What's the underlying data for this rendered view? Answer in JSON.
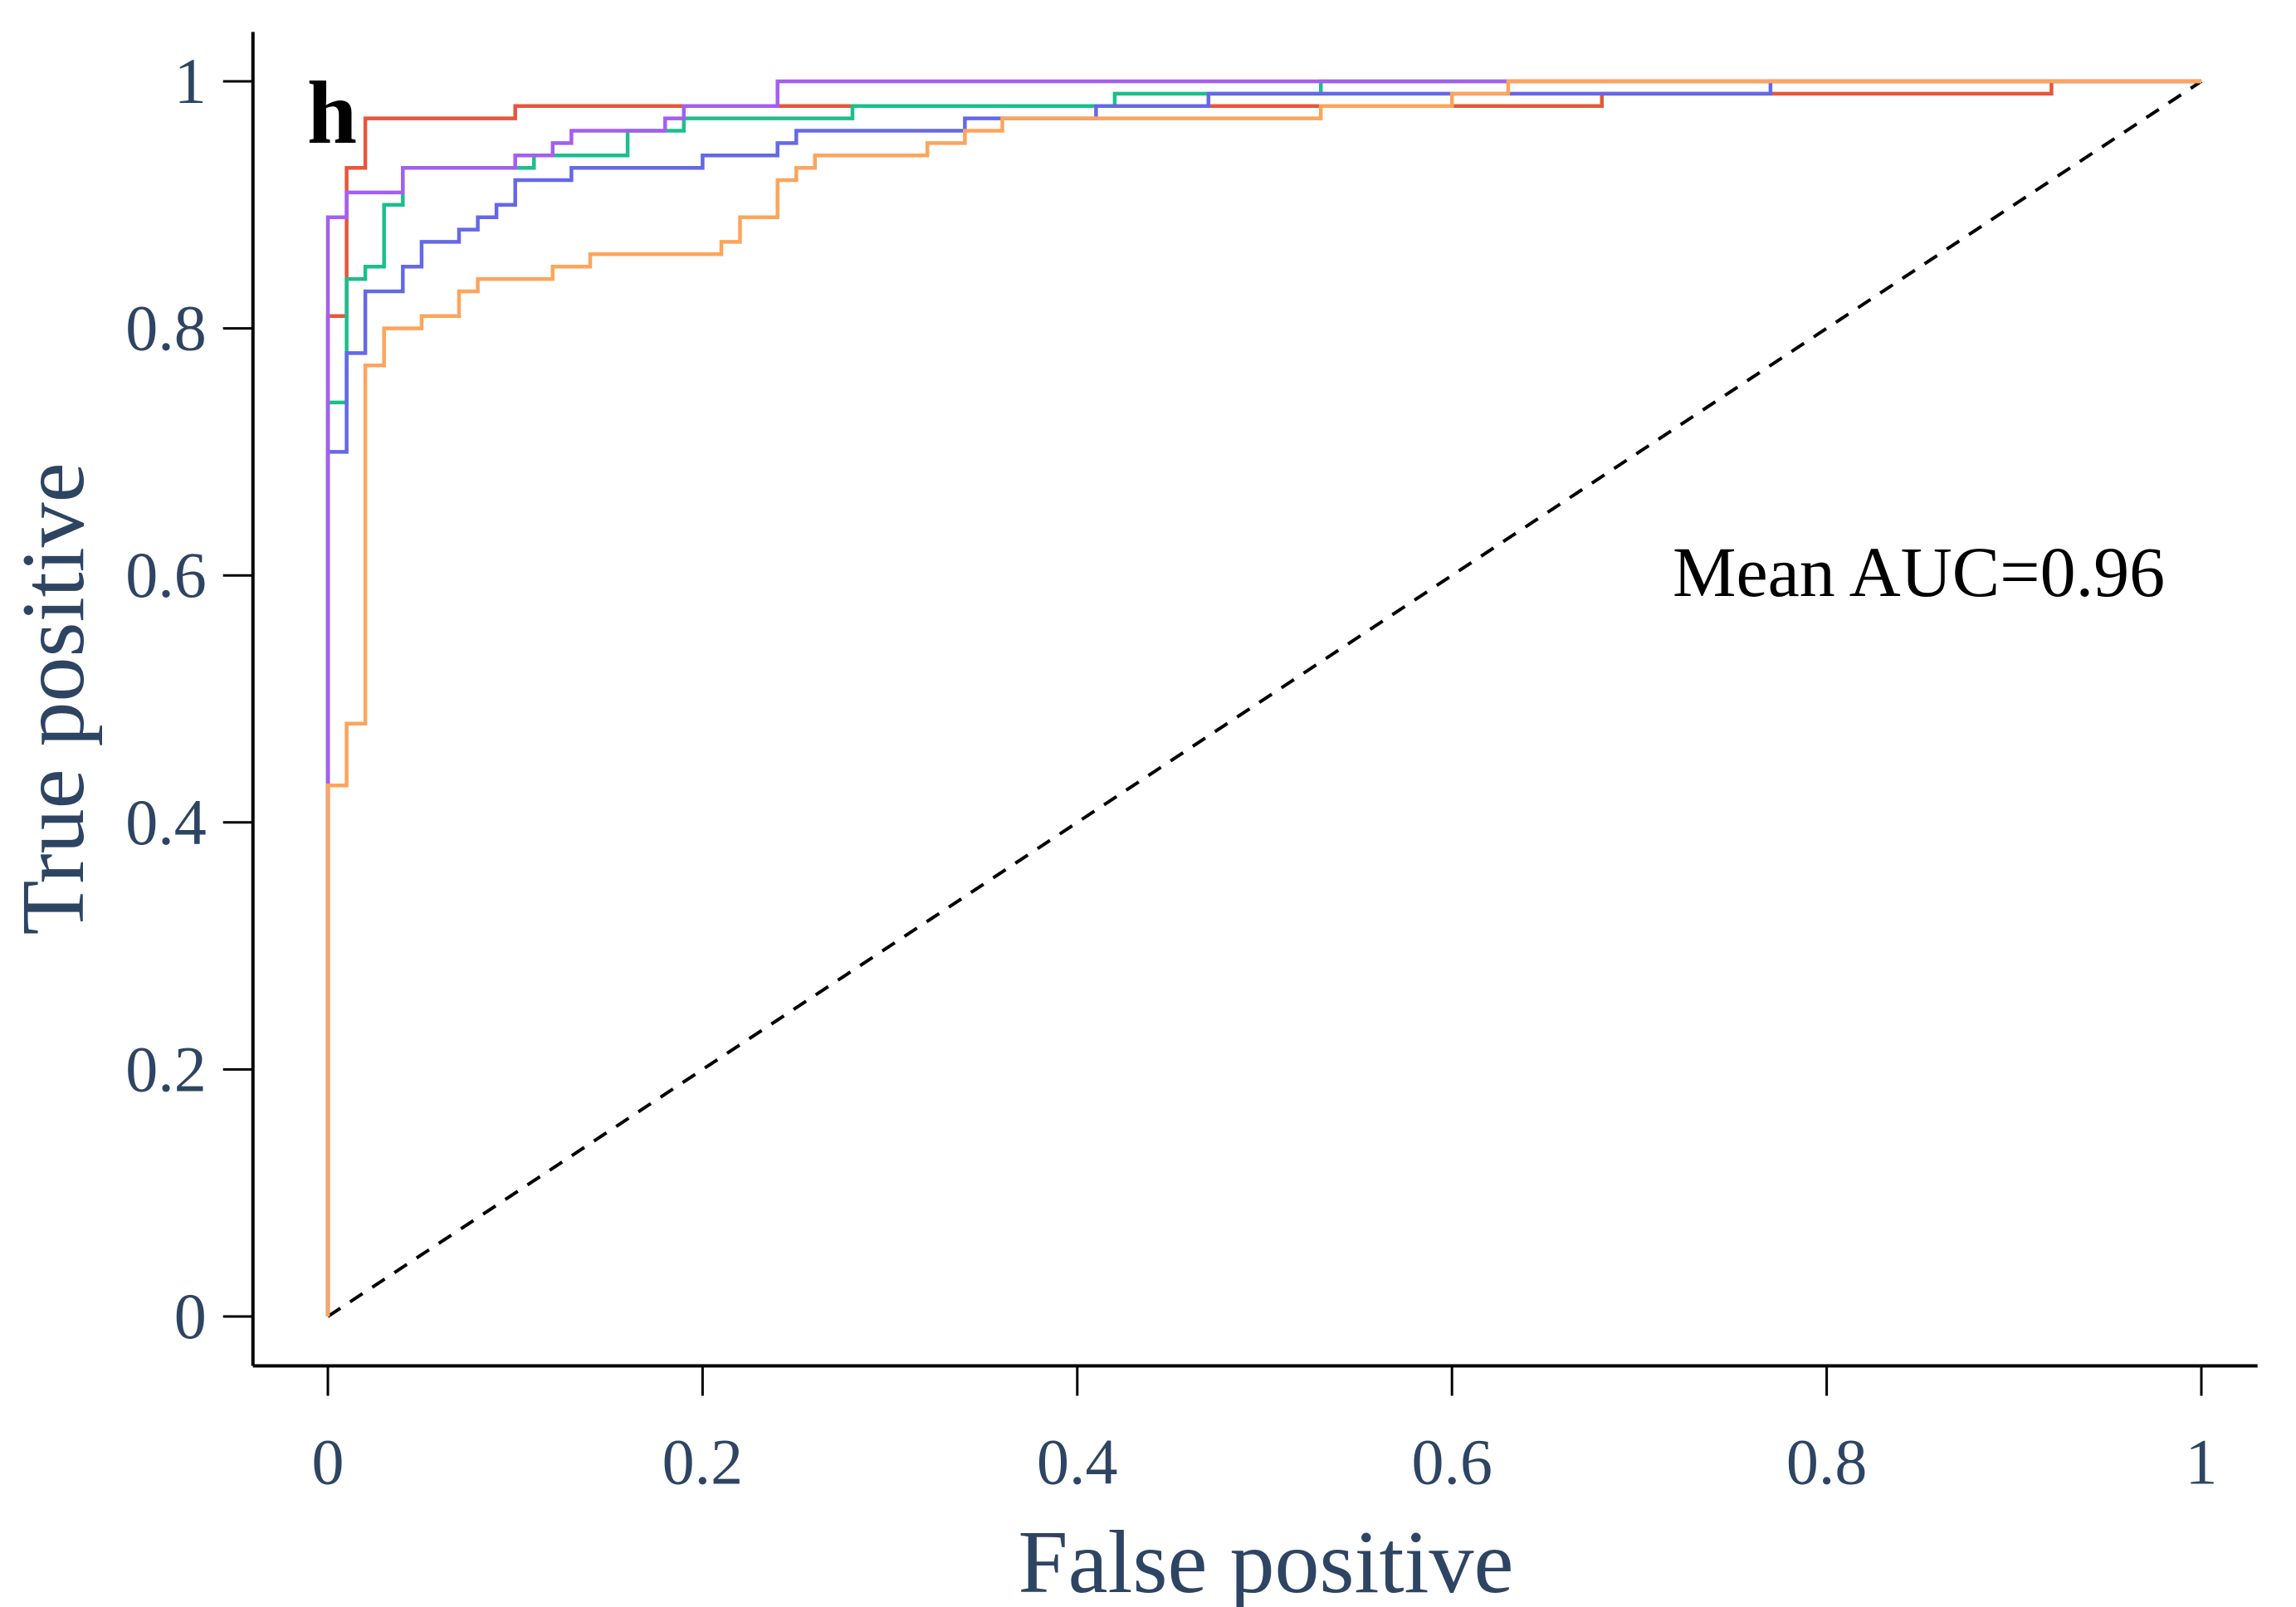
{
  "chart_data": {
    "type": "line",
    "panel_label": "h",
    "annotation": "Mean AUC=0.96",
    "xlabel": "False positive",
    "ylabel": "True positive",
    "xlim": [
      -0.04,
      1.03
    ],
    "ylim": [
      -0.04,
      1.04
    ],
    "x_ticks": [
      0,
      0.2,
      0.4,
      0.6,
      0.8,
      1
    ],
    "x_tick_labels": [
      "0",
      "0.2",
      "0.4",
      "0.6",
      "0.8",
      "1"
    ],
    "y_ticks": [
      0,
      0.2,
      0.4,
      0.6,
      0.8,
      1
    ],
    "y_tick_labels": [
      "0",
      "0.2",
      "0.4",
      "0.6",
      "0.8",
      "1"
    ],
    "grid": false,
    "legend": "none",
    "colors": {
      "axis": "#000000",
      "tick_text": "#2e4463",
      "diagonal": "#000000"
    },
    "diagonal": {
      "x": [
        0,
        1
      ],
      "y": [
        0,
        1
      ],
      "style": "dashed"
    },
    "series": [
      {
        "color": "#e8563a",
        "x": [
          0,
          0,
          0.01,
          0.01,
          0.02,
          0.02,
          0.1,
          0.1,
          0.68,
          0.68,
          0.92,
          0.92,
          1
        ],
        "y": [
          0,
          0.81,
          0.81,
          0.93,
          0.93,
          0.97,
          0.97,
          0.98,
          0.98,
          0.99,
          0.99,
          1.0,
          1.0
        ]
      },
      {
        "color": "#1bbf8c",
        "x": [
          0,
          0,
          0.01,
          0.01,
          0.02,
          0.02,
          0.03,
          0.03,
          0.04,
          0.04,
          0.11,
          0.11,
          0.16,
          0.16,
          0.19,
          0.19,
          0.28,
          0.28,
          0.42,
          0.42,
          0.53,
          0.53,
          1
        ],
        "y": [
          0,
          0.74,
          0.74,
          0.84,
          0.84,
          0.85,
          0.85,
          0.9,
          0.9,
          0.93,
          0.93,
          0.94,
          0.94,
          0.96,
          0.96,
          0.97,
          0.97,
          0.98,
          0.98,
          0.99,
          0.99,
          1.0,
          1.0
        ]
      },
      {
        "color": "#6468e8",
        "x": [
          0,
          0,
          0.01,
          0.01,
          0.02,
          0.02,
          0.04,
          0.04,
          0.05,
          0.05,
          0.07,
          0.07,
          0.08,
          0.08,
          0.09,
          0.09,
          0.1,
          0.1,
          0.13,
          0.13,
          0.2,
          0.2,
          0.24,
          0.24,
          0.25,
          0.25,
          0.34,
          0.34,
          0.41,
          0.41,
          0.47,
          0.47,
          0.77,
          0.77,
          1
        ],
        "y": [
          0,
          0.7,
          0.7,
          0.78,
          0.78,
          0.83,
          0.83,
          0.85,
          0.85,
          0.87,
          0.87,
          0.88,
          0.88,
          0.89,
          0.89,
          0.9,
          0.9,
          0.92,
          0.92,
          0.93,
          0.93,
          0.94,
          0.94,
          0.95,
          0.95,
          0.96,
          0.96,
          0.97,
          0.97,
          0.98,
          0.98,
          0.99,
          0.99,
          1.0,
          1.0
        ]
      },
      {
        "color": "#a45ff0",
        "x": [
          0,
          0,
          0.01,
          0.01,
          0.04,
          0.04,
          0.1,
          0.1,
          0.12,
          0.12,
          0.13,
          0.13,
          0.18,
          0.18,
          0.19,
          0.19,
          0.24,
          0.24,
          1
        ],
        "y": [
          0,
          0.89,
          0.89,
          0.91,
          0.91,
          0.93,
          0.93,
          0.94,
          0.94,
          0.95,
          0.95,
          0.96,
          0.96,
          0.97,
          0.97,
          0.98,
          0.98,
          1.0,
          1.0
        ]
      },
      {
        "color": "#fca55c",
        "x": [
          0,
          0,
          0.01,
          0.01,
          0.02,
          0.02,
          0.03,
          0.03,
          0.05,
          0.05,
          0.07,
          0.07,
          0.08,
          0.08,
          0.12,
          0.12,
          0.14,
          0.14,
          0.21,
          0.21,
          0.22,
          0.22,
          0.24,
          0.24,
          0.25,
          0.25,
          0.26,
          0.26,
          0.32,
          0.32,
          0.34,
          0.34,
          0.36,
          0.36,
          0.53,
          0.53,
          0.6,
          0.6,
          0.63,
          0.63,
          1
        ],
        "y": [
          0,
          0.43,
          0.43,
          0.48,
          0.48,
          0.77,
          0.77,
          0.8,
          0.8,
          0.81,
          0.81,
          0.83,
          0.83,
          0.84,
          0.84,
          0.85,
          0.85,
          0.86,
          0.86,
          0.87,
          0.87,
          0.89,
          0.89,
          0.92,
          0.92,
          0.93,
          0.93,
          0.94,
          0.94,
          0.95,
          0.95,
          0.96,
          0.96,
          0.97,
          0.97,
          0.98,
          0.98,
          0.99,
          0.99,
          1.0,
          1.0
        ]
      }
    ]
  }
}
